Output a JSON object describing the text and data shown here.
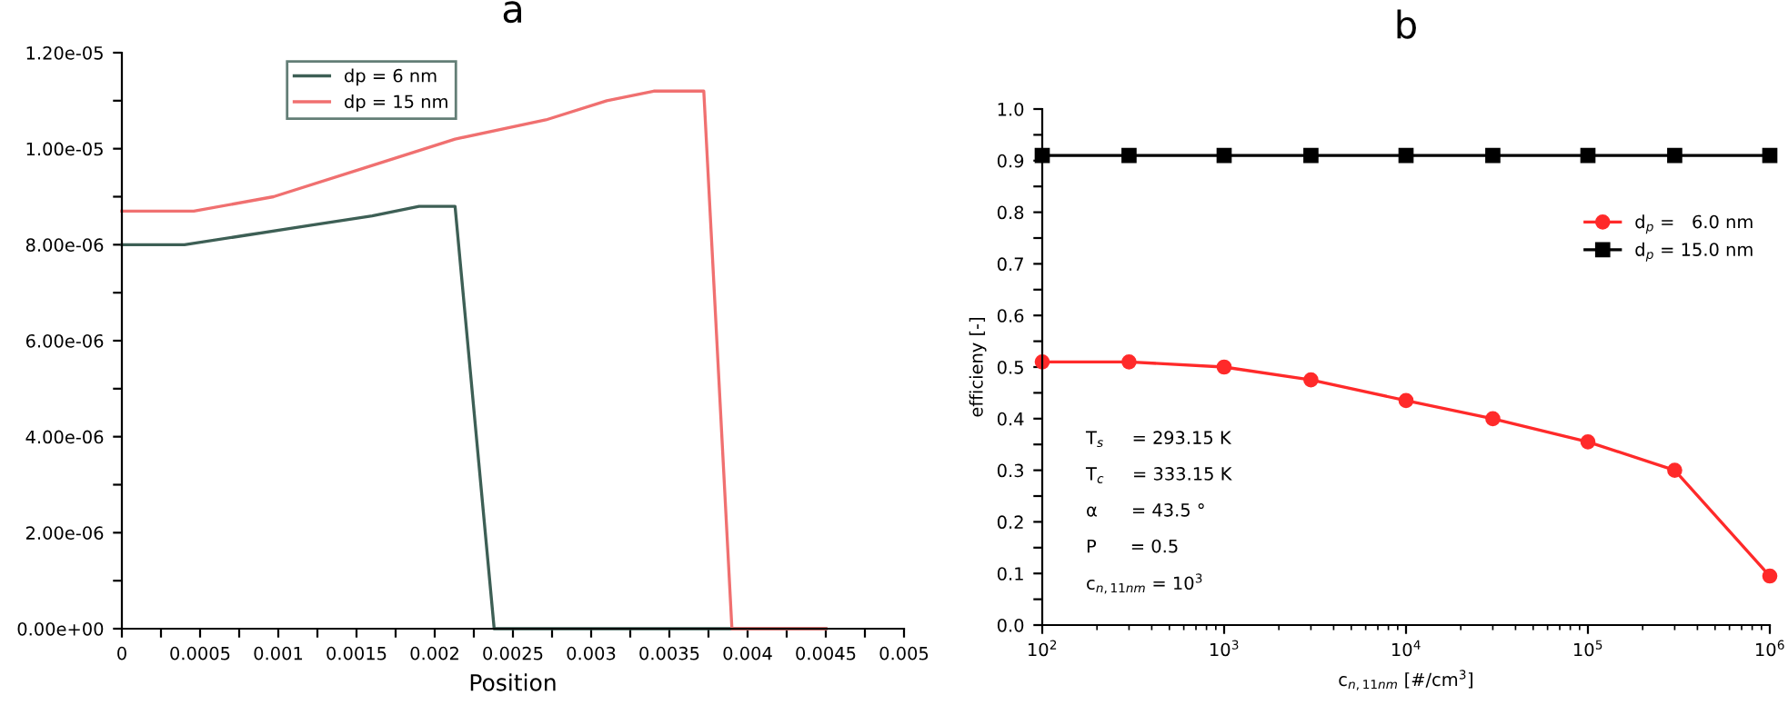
{
  "chart_data": [
    {
      "type": "line",
      "title": "a",
      "xlabel": "Position",
      "legend": "top left",
      "grid": false,
      "marker": "none",
      "line_style": "solid",
      "xlim": [
        0,
        0.005
      ],
      "ylim": [
        0,
        1.2e-05
      ],
      "xticks": [
        0,
        {
          "value": 0.00025,
          "label": null
        },
        0.0005,
        {
          "value": 0.00075,
          "label": null
        },
        0.001,
        {
          "value": 0.00125,
          "label": null
        },
        0.0015,
        {
          "value": 0.00175,
          "label": null
        },
        0.002,
        {
          "value": 0.00225,
          "label": null
        },
        0.0025,
        {
          "value": 0.00275,
          "label": null
        },
        0.003,
        {
          "value": 0.00325,
          "label": null
        },
        0.0035,
        {
          "value": 0.00375,
          "label": null
        },
        0.004,
        {
          "value": 0.00425,
          "label": null
        },
        0.0045,
        {
          "value": 0.00475,
          "label": null
        },
        0.005
      ],
      "yticks": [
        {
          "value": 0,
          "label": "0.00e+00"
        },
        {
          "value": 1e-06,
          "label": null
        },
        {
          "value": 2e-06,
          "label": "2.00e-06"
        },
        {
          "value": 3e-06,
          "label": null
        },
        {
          "value": 4e-06,
          "label": "4.00e-06"
        },
        {
          "value": 5e-06,
          "label": null
        },
        {
          "value": 6e-06,
          "label": "6.00e-06"
        },
        {
          "value": 7e-06,
          "label": null
        },
        {
          "value": 8e-06,
          "label": "8.00e-06"
        },
        {
          "value": 9e-06,
          "label": null
        },
        {
          "value": 1e-05,
          "label": "1.00e-05"
        },
        {
          "value": 1.1e-05,
          "label": null
        },
        {
          "value": 1.2e-05,
          "label": "1.20e-05"
        }
      ],
      "series": [
        {
          "name": "dp = 6 nm",
          "color": "#3d5f55",
          "x": [
            0,
            0.0004,
            0.0008,
            0.0012,
            0.0016,
            0.0019,
            0.00213,
            0.00238,
            0.0045
          ],
          "values": [
            8e-06,
            8e-06,
            8.2e-06,
            8.4e-06,
            8.6e-06,
            8.8e-06,
            8.8e-06,
            0,
            0
          ]
        },
        {
          "name": "dp = 15 nm",
          "color": "#f07070",
          "x": [
            0,
            0.00046,
            0.00097,
            0.00155,
            0.00213,
            0.00271,
            0.0031,
            0.0034,
            0.00372,
            0.0039,
            0.0045
          ],
          "values": [
            8.7e-06,
            8.7e-06,
            9e-06,
            9.6e-06,
            1.02e-05,
            1.06e-05,
            1.1e-05,
            1.12e-05,
            1.12e-05,
            0,
            0
          ]
        }
      ]
    },
    {
      "type": "line",
      "title": "b",
      "xlabel": "c$_{n,11nm}$ [#/cm$^{3}$]",
      "ylabel": "efficieny [-]",
      "log": "x",
      "legend": "right",
      "grid": false,
      "marker": "circle",
      "line_style": "solid",
      "xlim": [
        100,
        1000000
      ],
      "ylim": [
        0,
        1.0
      ],
      "xticks": [
        {
          "value": 100,
          "label": "10$^{2}$"
        },
        {
          "value": 1000,
          "label": "10$^{3}$"
        },
        {
          "value": 10000,
          "label": "10$^{4}$"
        },
        {
          "value": 100000,
          "label": "10$^{5}$"
        },
        {
          "value": 1000000,
          "label": "10$^{6}$"
        }
      ],
      "yticks": [
        {
          "value": 0,
          "label": "0.0"
        },
        {
          "value": 0.05,
          "label": null
        },
        0.1,
        {
          "value": 0.15,
          "label": null
        },
        0.2,
        {
          "value": 0.25,
          "label": null
        },
        0.3,
        {
          "value": 0.35,
          "label": null
        },
        0.4,
        {
          "value": 0.45,
          "label": null
        },
        0.5,
        {
          "value": 0.55,
          "label": null
        },
        0.6,
        {
          "value": 0.65,
          "label": null
        },
        0.7,
        {
          "value": 0.75,
          "label": null
        },
        0.8,
        {
          "value": 0.85,
          "label": null
        },
        0.9,
        {
          "value": 0.95,
          "label": null
        },
        {
          "value": 1,
          "label": "1.0"
        }
      ],
      "x": [
        100,
        300,
        1000,
        3000,
        10000,
        30000,
        100000,
        300000,
        1000000
      ],
      "annotations": [
        "T$_{s}$     = 293.15 K",
        "T$_{c}$     = 333.15 K",
        "α      = 43.5 °",
        "P      = 0.5",
        "c$_{n,11nm}$ = 10$^{3}$"
      ],
      "series": [
        {
          "name": "d$_{p}$ =   6.0 nm",
          "color": "#ff2a2a",
          "marker": "circle",
          "values": [
            0.51,
            0.51,
            0.5,
            0.475,
            0.435,
            0.4,
            0.355,
            0.3,
            0.095
          ]
        },
        {
          "name": "d$_{p}$ = 15.0 nm",
          "color": "#000000",
          "marker": "square",
          "values": [
            0.91,
            0.91,
            0.91,
            0.91,
            0.91,
            0.91,
            0.91,
            0.91,
            0.91
          ]
        }
      ]
    }
  ]
}
